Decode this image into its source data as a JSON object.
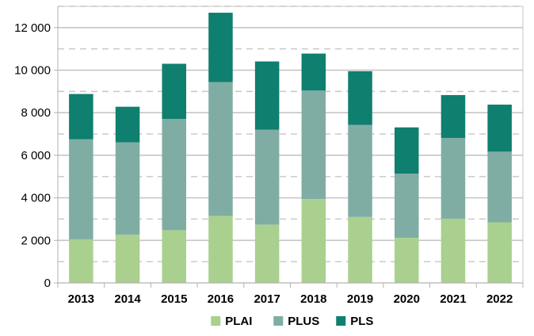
{
  "chart_data": {
    "type": "bar",
    "stacked": true,
    "categories": [
      "2013",
      "2014",
      "2015",
      "2016",
      "2017",
      "2018",
      "2019",
      "2020",
      "2021",
      "2022"
    ],
    "series": [
      {
        "name": "PLAI",
        "color": "#a9d08e",
        "values": [
          2050,
          2270,
          2480,
          3150,
          2740,
          3940,
          3100,
          2120,
          3020,
          2850
        ]
      },
      {
        "name": "PLUS",
        "color": "#7fada4",
        "values": [
          4700,
          4340,
          5230,
          6290,
          4460,
          5100,
          4330,
          3020,
          3790,
          3320
        ]
      },
      {
        "name": "PLS",
        "color": "#0f7f6f",
        "values": [
          2130,
          1670,
          2590,
          3260,
          3210,
          1740,
          2520,
          2170,
          2020,
          2210
        ]
      }
    ],
    "ylim": [
      0,
      13000
    ],
    "y_ticks": [
      0,
      2000,
      4000,
      6000,
      8000,
      10000,
      12000
    ],
    "y_tick_labels": [
      "0",
      "2 000",
      "4 000",
      "6 000",
      "8 000",
      "10 000",
      "12 000"
    ],
    "grid": true,
    "legend_position": "bottom"
  }
}
